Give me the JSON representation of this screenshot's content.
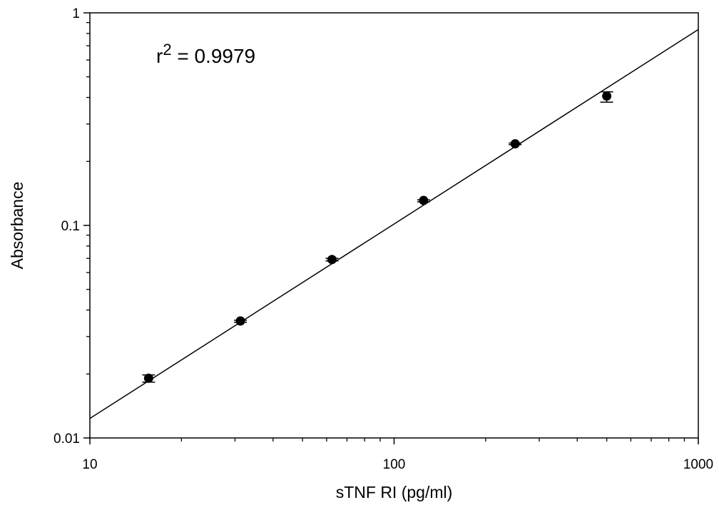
{
  "chart_data": {
    "type": "scatter",
    "xlabel": "sTNF RI (pg/ml)",
    "ylabel": "Absorbance",
    "xscale": "log",
    "yscale": "log",
    "xlim": [
      10,
      1000
    ],
    "ylim": [
      0.01,
      1
    ],
    "xticks": [
      10,
      100,
      1000
    ],
    "xtick_labels": [
      "10",
      "100",
      "1000"
    ],
    "yticks": [
      0.01,
      0.1,
      1
    ],
    "ytick_labels": [
      "0.01",
      "0.1",
      "1"
    ],
    "grid": false,
    "annotation": {
      "prefix": "r",
      "superscript": "2",
      "text": " = 0.9979"
    },
    "series": [
      {
        "points": [
          {
            "x": 15.6,
            "y": 0.0191,
            "err_low": 0.0183,
            "err_high": 0.0198
          },
          {
            "x": 31.25,
            "y": 0.0355,
            "err_low": 0.035,
            "err_high": 0.0358
          },
          {
            "x": 62.5,
            "y": 0.0691,
            "err_low": 0.068,
            "err_high": 0.07
          },
          {
            "x": 125,
            "y": 0.131,
            "err_low": 0.129,
            "err_high": 0.132
          },
          {
            "x": 250,
            "y": 0.242,
            "err_low": 0.24,
            "err_high": 0.244
          },
          {
            "x": 500,
            "y": 0.406,
            "err_low": 0.38,
            "err_high": 0.425
          }
        ]
      }
    ],
    "fit_line": {
      "x": [
        10,
        1000
      ],
      "y": [
        0.01235,
        0.835
      ]
    }
  }
}
